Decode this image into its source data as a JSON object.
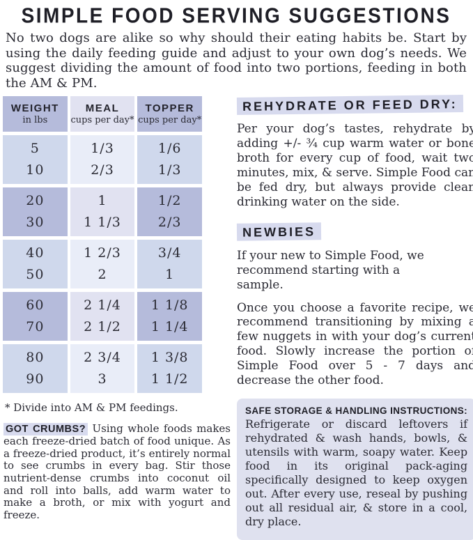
{
  "page": {
    "title": "SIMPLE FOOD SERVING SUGGESTIONS",
    "intro": "No two dogs are alike so why should their eating habits be. Start by using the daily feeding guide and adjust to your own dog’s needs. We suggest dividing the amount of food into two portions, feeding in both the AM & PM."
  },
  "table": {
    "headers": [
      {
        "title": "WEIGHT",
        "subtitle": "in lbs"
      },
      {
        "title": "MEAL",
        "subtitle": "cups per day*"
      },
      {
        "title": "TOPPER",
        "subtitle": "cups per day*"
      }
    ],
    "bands": [
      {
        "rows": [
          {
            "weight": "5",
            "meal": "1/3",
            "topper": "1/6"
          },
          {
            "weight": "10",
            "meal": "2/3",
            "topper": "1/3"
          }
        ]
      },
      {
        "rows": [
          {
            "weight": "20",
            "meal": "1",
            "topper": "1/2"
          },
          {
            "weight": "30",
            "meal": "1 1/3",
            "topper": "2/3"
          }
        ]
      },
      {
        "rows": [
          {
            "weight": "40",
            "meal": "1 2/3",
            "topper": "3/4"
          },
          {
            "weight": "50",
            "meal": "2",
            "topper": "1"
          }
        ]
      },
      {
        "rows": [
          {
            "weight": "60",
            "meal": "2 1/4",
            "topper": "1 1/8"
          },
          {
            "weight": "70",
            "meal": "2 1/2",
            "topper": "1 1/4"
          }
        ]
      },
      {
        "rows": [
          {
            "weight": "80",
            "meal": "2 3/4",
            "topper": "1 3/8"
          },
          {
            "weight": "90",
            "meal": "3",
            "topper": "1 1/2"
          }
        ]
      }
    ],
    "footnote": "* Divide into AM & PM feedings."
  },
  "crumbs": {
    "label": "GOT CRUMBS?",
    "text": "Using whole foods makes each freeze-dried batch of food unique. As a freeze-dried product, it’s entirely normal to see crumbs in every bag. Stir those nutrient-dense crumbs into coconut oil and roll into balls, add warm water to make a broth, or mix with yogurt and freeze."
  },
  "rehydrate": {
    "heading": "REHYDRATE OR FEED DRY:",
    "text": "Per your dog’s tastes, rehydrate by adding +/- ¾ cup warm water or bone broth for every cup of food, wait two minutes, mix, & serve. Simple Food can be fed dry, but always provide clean drinking water on the side."
  },
  "newbies": {
    "heading": "NEWBIES",
    "p1": "If your new to Simple Food, we recommend starting with a sample.",
    "p2": "Once you choose a favorite recipe, we recommend transitioning by mixing a few nuggets in with your dog’s current food. Slowly increase the portion of Simple Food over 5 - 7 days and decrease the other food."
  },
  "storage": {
    "heading": "SAFE STORAGE & HANDLING INSTRUCTIONS:",
    "text": "Refrigerate or discard leftovers if rehydrated & wash hands, bowls, & utensils with warm, soapy water. Keep food in its original pack-aging specifically designed to keep oxygen out. After every use, reseal by pushing out all residual air, & store in a cool, dry place."
  },
  "colors": {
    "band_dark": "#b5bbdb",
    "band_dark_mid": "#e1e2f1",
    "band_light": "#cfd8ec",
    "band_light_mid": "#e9edf8",
    "highlight": "#d7daee",
    "storage_box_bg": "#dfe1ef",
    "text": "#2a2a33"
  }
}
